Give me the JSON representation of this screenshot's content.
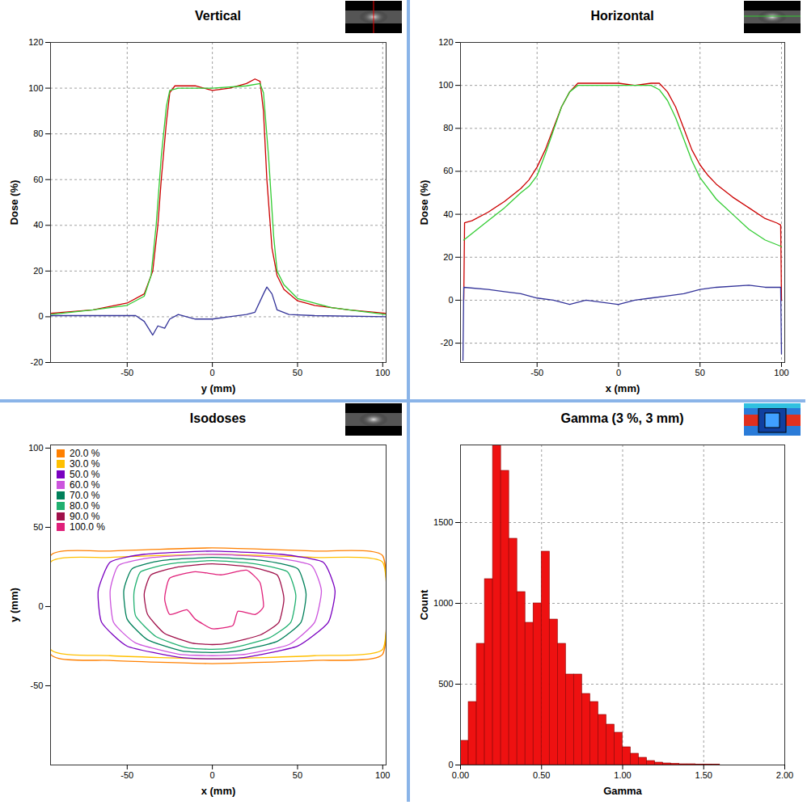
{
  "chart_data": [
    {
      "type": "line",
      "title": "Vertical",
      "x_label": "y (mm)",
      "y_label": "Dose (%)",
      "xlim": [
        -95,
        102
      ],
      "ylim": [
        -20,
        120
      ],
      "xticks": [
        -50,
        0,
        50,
        100
      ],
      "yticks": [
        -20,
        0,
        20,
        40,
        60,
        80,
        100,
        120
      ],
      "grid": true,
      "series": [
        {
          "color": "#cc0000",
          "x": [
            -95,
            -70,
            -50,
            -40,
            -35,
            -32,
            -30,
            -27,
            -25,
            -22,
            -20,
            -10,
            0,
            10,
            20,
            25,
            28,
            30,
            32,
            35,
            38,
            42,
            50,
            60,
            80,
            102
          ],
          "values": [
            1.5,
            3,
            6,
            10,
            20,
            40,
            60,
            85,
            98,
            101,
            101,
            101,
            99,
            100,
            102,
            104,
            103,
            90,
            60,
            30,
            18,
            12,
            7,
            5,
            3,
            1.5
          ]
        },
        {
          "color": "#33cc33",
          "x": [
            -95,
            -70,
            -50,
            -40,
            -36,
            -33,
            -30,
            -27,
            -25,
            -20,
            0,
            20,
            28,
            30,
            33,
            36,
            38,
            42,
            50,
            70,
            102
          ],
          "values": [
            1,
            3,
            5,
            9,
            18,
            40,
            70,
            92,
            99,
            100,
            100,
            101,
            102,
            98,
            70,
            35,
            20,
            14,
            8,
            4,
            1
          ]
        },
        {
          "color": "#333399",
          "x": [
            -95,
            -60,
            -45,
            -40,
            -35,
            -32,
            -28,
            -25,
            -20,
            -10,
            0,
            10,
            20,
            25,
            30,
            32,
            35,
            38,
            45,
            60,
            102
          ],
          "values": [
            0.5,
            0.5,
            0.5,
            -2,
            -8,
            -4,
            -5,
            -1,
            1,
            -1,
            -1,
            0,
            1,
            2,
            10,
            13,
            10,
            3,
            1,
            0.5,
            0
          ]
        }
      ]
    },
    {
      "type": "line",
      "title": "Horizontal",
      "x_label": "x (mm)",
      "y_label": "Dose (%)",
      "xlim": [
        -97,
        102
      ],
      "ylim": [
        -29,
        120
      ],
      "xticks": [
        -50,
        0,
        50,
        100
      ],
      "yticks": [
        -20,
        0,
        20,
        40,
        60,
        80,
        100,
        120
      ],
      "grid": true,
      "series": [
        {
          "color": "#cc0000",
          "x": [
            -95,
            -94.5,
            -90,
            -80,
            -70,
            -60,
            -55,
            -50,
            -45,
            -40,
            -35,
            -30,
            -25,
            -20,
            0,
            10,
            20,
            25,
            30,
            35,
            40,
            45,
            50,
            55,
            60,
            70,
            80,
            90,
            97,
            99.5,
            100
          ],
          "values": [
            0,
            36,
            37,
            41,
            46,
            52,
            56,
            62,
            70,
            80,
            90,
            97,
            101,
            101,
            101,
            100,
            101,
            101,
            97,
            90,
            80,
            70,
            63,
            58,
            54,
            48,
            43,
            38,
            36,
            35,
            0
          ]
        },
        {
          "color": "#33cc33",
          "x": [
            -95,
            -90,
            -80,
            -70,
            -60,
            -55,
            -50,
            -45,
            -40,
            -35,
            -30,
            -25,
            0,
            20,
            25,
            30,
            35,
            40,
            45,
            50,
            55,
            60,
            70,
            80,
            90,
            100
          ],
          "values": [
            28,
            31,
            37,
            43,
            50,
            53,
            58,
            68,
            79,
            90,
            97,
            100,
            100,
            100,
            98,
            93,
            85,
            75,
            65,
            57,
            52,
            47,
            40,
            33,
            28,
            25
          ]
        },
        {
          "color": "#333399",
          "x": [
            -95.5,
            -95,
            -80,
            -70,
            -60,
            -50,
            -40,
            -30,
            -20,
            0,
            10,
            20,
            30,
            40,
            50,
            60,
            80,
            90,
            99.5,
            100
          ],
          "values": [
            -28,
            6,
            5,
            4,
            3,
            1,
            0,
            -2,
            0,
            -2,
            0,
            1,
            2,
            3,
            5,
            6,
            7,
            6,
            6,
            -25
          ]
        }
      ]
    },
    {
      "type": "contour",
      "title": "Isodoses",
      "x_label": "x (mm)",
      "y_label": "y (mm)",
      "xlim": [
        -95,
        102
      ],
      "ylim": [
        -100,
        102
      ],
      "xticks": [
        -50,
        0,
        50,
        100
      ],
      "yticks": [
        -50,
        0,
        50,
        100
      ],
      "legend": "top-left",
      "series": [
        {
          "name": "20.0 %",
          "color": "#ff8000",
          "x": [
            -95,
            -60,
            0,
            60,
            100,
            100,
            60,
            0,
            -60,
            -95
          ],
          "values": [
            32,
            35,
            37,
            35,
            32,
            -30,
            -34,
            -36,
            -34,
            -30
          ]
        },
        {
          "name": "30.0 %",
          "color": "#ffc000",
          "x": [
            -95,
            -60,
            0,
            60,
            100,
            100,
            60,
            0,
            -60,
            -95
          ],
          "values": [
            28,
            31,
            33,
            31,
            28,
            -27,
            -31,
            -33,
            -31,
            -27
          ]
        },
        {
          "name": "50.0 %",
          "color": "#7a00c0",
          "x": [
            -60,
            -40,
            0,
            40,
            65,
            72,
            68,
            50,
            20,
            0,
            -20,
            -50,
            -65,
            -67
          ],
          "values": [
            28,
            33,
            35,
            33,
            28,
            10,
            -10,
            -25,
            -32,
            -33,
            -32,
            -25,
            -10,
            10
          ]
        },
        {
          "name": "60.0 %",
          "color": "#cc55dd",
          "x": [
            -55,
            -35,
            0,
            35,
            58,
            64,
            60,
            45,
            20,
            0,
            -20,
            -45,
            -58,
            -60
          ],
          "values": [
            26,
            31,
            33,
            31,
            26,
            10,
            -10,
            -24,
            -30,
            -31,
            -30,
            -23,
            -10,
            10
          ]
        },
        {
          "name": "70.0 %",
          "color": "#00805a",
          "x": [
            -47,
            -30,
            0,
            30,
            50,
            55,
            52,
            38,
            15,
            0,
            -18,
            -38,
            -50,
            -52
          ],
          "values": [
            24,
            29,
            31,
            29,
            24,
            8,
            -10,
            -22,
            -28,
            -29,
            -28,
            -21,
            -8,
            10
          ]
        },
        {
          "name": "80.0 %",
          "color": "#20b070",
          "x": [
            -42,
            -25,
            0,
            25,
            44,
            49,
            46,
            33,
            12,
            0,
            -15,
            -33,
            -45,
            -46
          ],
          "values": [
            22,
            27,
            29,
            27,
            22,
            7,
            -10,
            -20,
            -26,
            -27,
            -26,
            -19,
            -6,
            9
          ]
        },
        {
          "name": "90.0 %",
          "color": "#a0104a",
          "x": [
            -36,
            -20,
            0,
            22,
            38,
            42,
            39,
            28,
            10,
            0,
            -12,
            -28,
            -38,
            -40
          ],
          "values": [
            20,
            25,
            27,
            25,
            20,
            5,
            -10,
            -18,
            -23,
            -24,
            -23,
            -17,
            -5,
            8
          ]
        },
        {
          "name": "100.0 %",
          "color": "#e0207a",
          "x": [
            -25,
            -10,
            5,
            20,
            28,
            30,
            25,
            15,
            12,
            0,
            -10,
            -15,
            -25,
            -28
          ],
          "values": [
            18,
            22,
            20,
            23,
            15,
            0,
            -5,
            -3,
            -12,
            -14,
            -8,
            -2,
            -5,
            5
          ]
        }
      ]
    },
    {
      "type": "histogram",
      "title": "Gamma (3 %, 3 mm)",
      "x_label": "Gamma",
      "y_label": "Count",
      "color": "#ee1111",
      "grid": true,
      "bins": [
        0,
        0.05,
        0.1,
        0.15,
        0.2,
        0.25,
        0.3,
        0.35,
        0.4,
        0.45,
        0.5,
        0.55,
        0.6,
        0.65,
        0.7,
        0.75,
        0.8,
        0.85,
        0.9,
        0.95,
        1,
        1.05,
        1.1,
        1.15,
        1.2,
        1.25,
        1.3,
        1.35,
        1.4,
        1.45,
        1.5,
        1.55,
        1.6,
        1.65,
        1.7,
        1.75,
        1.8,
        1.85,
        1.9,
        1.95,
        2
      ],
      "values": [
        150,
        390,
        750,
        1150,
        1980,
        1820,
        1400,
        1070,
        880,
        1000,
        1320,
        900,
        750,
        560,
        560,
        440,
        390,
        310,
        250,
        200,
        110,
        70,
        45,
        25,
        15,
        10,
        8,
        5,
        5,
        3,
        3,
        2,
        0,
        0,
        0,
        0,
        0,
        0,
        0,
        0
      ],
      "xlim": [
        0,
        2
      ],
      "ylim": [
        0,
        1980
      ],
      "xticks": [
        {
          "value": 0,
          "label": "0.00"
        },
        {
          "value": 0.5,
          "label": "0.50"
        },
        {
          "value": 1,
          "label": "1.00"
        },
        {
          "value": 1.5,
          "label": "1.50"
        },
        {
          "value": 2,
          "label": "2.00"
        }
      ],
      "yticks": [
        0,
        500,
        1000,
        1500
      ]
    }
  ]
}
